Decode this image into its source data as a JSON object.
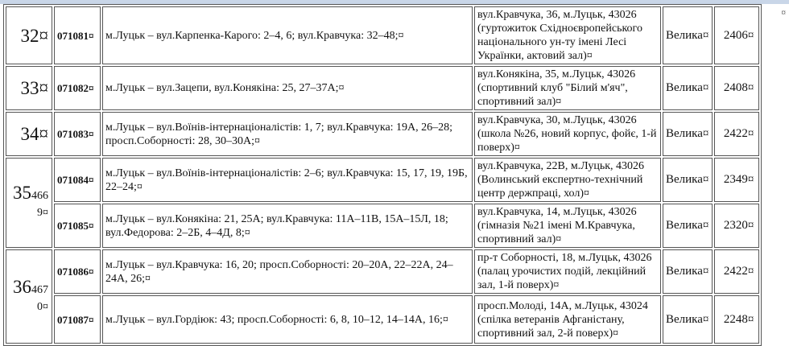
{
  "rows": [
    {
      "number": "32¤",
      "code": "071081¤",
      "boundaries": "м.Луцьк – вул.Карпенка-Карого: 2–4, 6; вул.Кравчука: 32–48;¤",
      "address": "вул.Кравчука, 36, м.Луцьк, 43026 (гуртожиток Східноєвропейського національного ун-ту імені Лесі Українки, актовий зал)¤",
      "size": "Велика¤",
      "count": "2406¤"
    },
    {
      "number": "33¤",
      "code": "071082¤",
      "boundaries": "м.Луцьк – вул.Зацепи, вул.Конякіна: 25, 27–37А;¤",
      "address": "вул.Конякіна, 35, м.Луцьк, 43026 (спортивний клуб \"Білий м'яч\", спортивний зал)¤",
      "size": "Велика¤",
      "count": "2408¤"
    },
    {
      "number": "34¤",
      "code": "071083¤",
      "boundaries": "м.Луцьк – вул.Воїнів-інтернаціоналістів: 1, 7; вул.Кравчука: 19А, 26–28; просп.Соборності: 28, 30–30А;¤",
      "address": "вул.Кравчука, 30, м.Луцьк, 43026 (школа №26, новий корпус, фойє, 1-й поверх)¤",
      "size": "Велика¤",
      "count": "2422¤"
    }
  ],
  "groups": [
    {
      "number": "35",
      "number_small": "466 9¤",
      "rows": [
        {
          "code": "071084¤",
          "boundaries": "м.Луцьк – вул.Воїнів-інтернаціоналістів: 2–6; вул.Кравчука: 15, 17, 19, 19Б, 22–24;¤",
          "address": "вул.Кравчука, 22В, м.Луцьк, 43026 (Волинський експертно-технічний центр держпраці, хол)¤",
          "size": "Велика¤",
          "count": "2349¤"
        },
        {
          "code": "071085¤",
          "boundaries": "м.Луцьк – вул.Конякіна: 21, 25А; вул.Кравчука: 11А–11В, 15А–15Л, 18; вул.Федорова: 2–2Б, 4–4Д, 8;¤",
          "address": "вул.Кравчука, 14, м.Луцьк, 43026 (гімназія №21 імені М.Кравчука, спортивний зал)¤",
          "size": "Велика¤",
          "count": "2320¤"
        }
      ]
    },
    {
      "number": "36",
      "number_small": "467 0¤",
      "rows": [
        {
          "code": "071086¤",
          "boundaries": "м.Луцьк – вул.Кравчука: 16, 20; просп.Соборності: 20–20А, 22–22А, 24–24А, 26;¤",
          "address": "пр-т Соборності, 18, м.Луцьк, 43026 (палац урочистих подій, лекційний зал, 1-й поверх)¤",
          "size": "Велика¤",
          "count": "2422¤"
        },
        {
          "code": "071087¤",
          "boundaries": "м.Луцьк – вул.Гордіюк: 43; просп.Соборності: 6, 8, 10–12, 14–14А, 16;¤",
          "address": "просп.Молоді, 14А, м.Луцьк, 43024 (спілка ветеранів Афганістану, спортивний зал, 2-й поверх)¤",
          "size": "Велика¤",
          "count": "2248¤"
        }
      ]
    }
  ],
  "end_of_row_mark": "¤"
}
